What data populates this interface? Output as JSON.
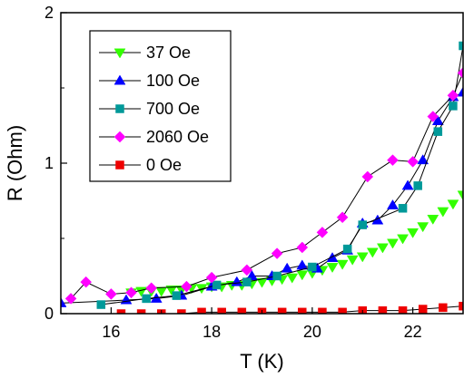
{
  "chart_data": {
    "type": "scatter",
    "xlabel": "T (K)",
    "ylabel": "R (Ohm)",
    "xlim": [
      15,
      23
    ],
    "ylim": [
      0,
      2
    ],
    "xticks": [
      "16",
      "18",
      "20",
      "22"
    ],
    "yticks": [
      "0",
      "1",
      "2"
    ],
    "grid": false,
    "legend_position": "top-left",
    "series": [
      {
        "name": "37 Oe",
        "color": "#33ff00",
        "marker": "triangle-down",
        "line": false,
        "x": [
          16.4,
          16.6,
          16.8,
          17.0,
          17.2,
          17.4,
          17.6,
          17.8,
          18.0,
          18.2,
          18.4,
          18.6,
          18.8,
          19.0,
          19.2,
          19.4,
          19.6,
          19.8,
          20.0,
          20.2,
          20.4,
          20.6,
          20.8,
          21.0,
          21.2,
          21.4,
          21.6,
          21.8,
          22.0,
          22.2,
          22.4,
          22.6,
          22.8,
          23.0
        ],
        "y": [
          0.14,
          0.15,
          0.15,
          0.15,
          0.16,
          0.16,
          0.17,
          0.17,
          0.18,
          0.18,
          0.19,
          0.19,
          0.2,
          0.21,
          0.22,
          0.23,
          0.24,
          0.26,
          0.27,
          0.29,
          0.31,
          0.33,
          0.36,
          0.38,
          0.41,
          0.44,
          0.47,
          0.5,
          0.54,
          0.58,
          0.63,
          0.68,
          0.73,
          0.79
        ]
      },
      {
        "name": "100 Oe",
        "color": "#0000ff",
        "marker": "triangle-up",
        "line": true,
        "x": [
          15.0,
          16.3,
          16.9,
          17.4,
          18.0,
          18.5,
          18.8,
          19.2,
          19.5,
          19.8,
          20.1,
          20.4,
          20.7,
          21.0,
          21.3,
          21.6,
          21.9,
          22.2,
          22.5,
          22.8,
          23.0
        ],
        "y": [
          0.07,
          0.09,
          0.1,
          0.12,
          0.18,
          0.21,
          0.25,
          0.25,
          0.3,
          0.32,
          0.3,
          0.37,
          0.42,
          0.6,
          0.62,
          0.72,
          0.85,
          1.02,
          1.28,
          1.44,
          1.47
        ]
      },
      {
        "name": "700 Oe",
        "color": "#009999",
        "marker": "square",
        "line": true,
        "x": [
          15.8,
          16.7,
          17.3,
          18.1,
          18.7,
          19.3,
          20.0,
          20.7,
          21.0,
          21.8,
          22.1,
          22.5,
          22.8,
          23.0
        ],
        "y": [
          0.06,
          0.1,
          0.12,
          0.19,
          0.21,
          0.25,
          0.31,
          0.43,
          0.59,
          0.7,
          0.85,
          1.21,
          1.38,
          1.78
        ]
      },
      {
        "name": "2060 Oe",
        "color": "#ff00ff",
        "marker": "diamond",
        "line": true,
        "x": [
          15.2,
          15.5,
          16.0,
          16.4,
          16.8,
          17.5,
          18.0,
          18.7,
          19.3,
          19.8,
          20.2,
          20.6,
          21.1,
          21.6,
          22.0,
          22.4,
          22.8,
          23.0
        ],
        "y": [
          0.1,
          0.21,
          0.13,
          0.14,
          0.17,
          0.18,
          0.24,
          0.29,
          0.4,
          0.44,
          0.54,
          0.64,
          0.91,
          1.02,
          1.01,
          1.31,
          1.45,
          1.6
        ]
      },
      {
        "name": "0 Oe",
        "color": "#ee0000",
        "marker": "square",
        "line": true,
        "x": [
          16.2,
          16.6,
          17.0,
          17.4,
          17.8,
          18.2,
          18.6,
          19.0,
          19.4,
          19.8,
          20.2,
          20.6,
          21.0,
          21.4,
          21.8,
          22.2,
          22.6,
          23.0
        ],
        "y": [
          0.0,
          0.0,
          0.0,
          0.0,
          0.01,
          0.01,
          0.01,
          0.01,
          0.01,
          0.01,
          0.01,
          0.01,
          0.02,
          0.02,
          0.02,
          0.03,
          0.04,
          0.05
        ]
      }
    ]
  }
}
